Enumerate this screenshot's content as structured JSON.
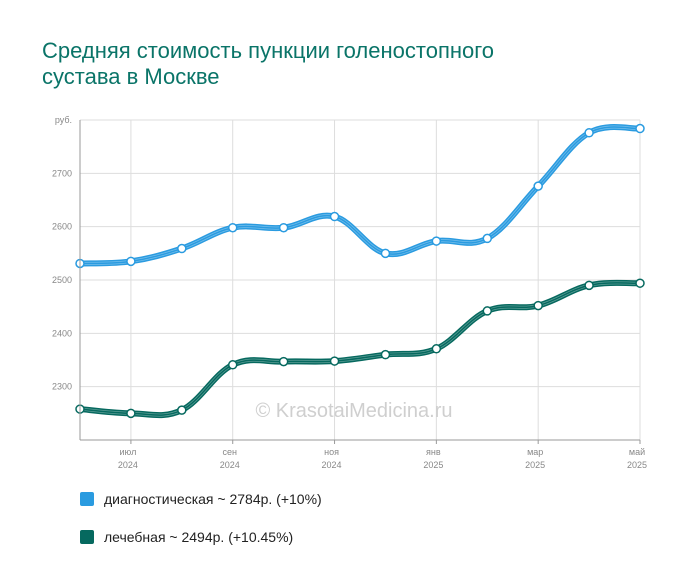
{
  "title_line1": "Средняя стоимость пункции голеностопного",
  "title_line2": "сустава в Москве",
  "watermark": "© KrasotaiMedicina.ru",
  "colors": {
    "title": "#0a7468",
    "diagnostic": "#2a9be0",
    "therapeutic": "#06695f",
    "grid": "#dddddd",
    "axis": "#999999"
  },
  "legend": [
    {
      "label": "диагностическая ~ 2784р. (+10%)",
      "color": "#2a9be0"
    },
    {
      "label": "лечебная ~ 2494р. (+10.45%)",
      "color": "#06695f"
    }
  ],
  "chart_data": {
    "type": "line",
    "y_unit_label": "руб.",
    "y_ticks": [
      2300,
      2400,
      2500,
      2600,
      2700
    ],
    "ylim": [
      2200,
      2800
    ],
    "x": [
      "2024-06",
      "2024-07",
      "2024-08",
      "2024-09",
      "2024-10",
      "2024-11",
      "2024-12",
      "2025-01",
      "2025-02",
      "2025-03",
      "2025-04",
      "2025-05"
    ],
    "x_tick_labels": [
      {
        "index": 1,
        "month": "июл",
        "year": "2024"
      },
      {
        "index": 3,
        "month": "сен",
        "year": "2024"
      },
      {
        "index": 5,
        "month": "ноя",
        "year": "2024"
      },
      {
        "index": 7,
        "month": "янв",
        "year": "2025"
      },
      {
        "index": 9,
        "month": "мар",
        "year": "2025"
      },
      {
        "index": 11,
        "month": "май",
        "year": "2025"
      }
    ],
    "series": [
      {
        "name": "диагностическая",
        "color": "#2a9be0",
        "values": [
          2531,
          2535,
          2559,
          2598,
          2598,
          2619,
          2550,
          2573,
          2578,
          2676,
          2776,
          2784
        ]
      },
      {
        "name": "лечебная",
        "color": "#06695f",
        "values": [
          2258,
          2250,
          2256,
          2341,
          2347,
          2348,
          2360,
          2371,
          2442,
          2452,
          2490,
          2494
        ]
      }
    ],
    "grid": true
  }
}
